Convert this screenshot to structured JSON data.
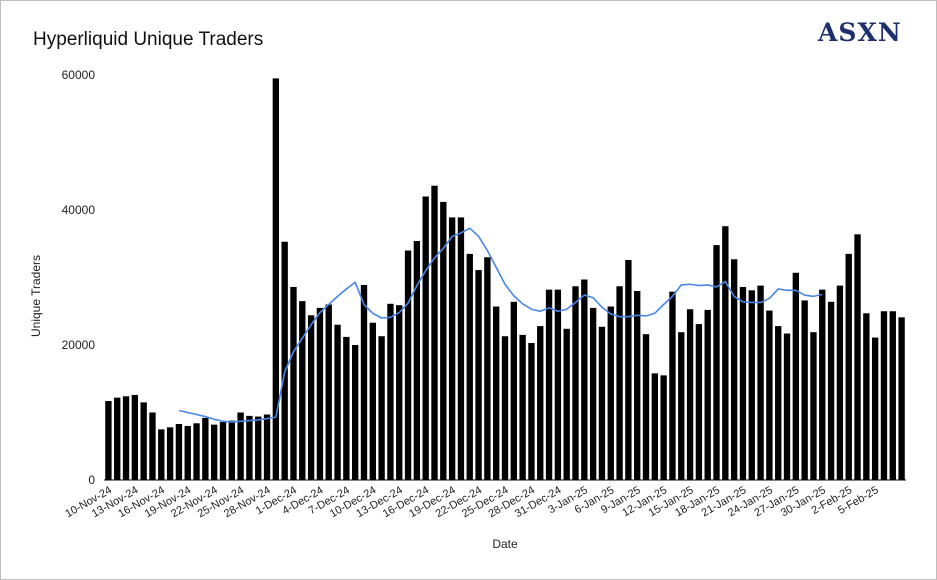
{
  "chart_data": {
    "type": "bar",
    "title": "Hyperliquid Unique Traders",
    "xlabel": "Date",
    "ylabel": "Unique Traders",
    "ylim": [
      0,
      60000
    ],
    "yticks": [
      0,
      20000,
      40000,
      60000
    ],
    "x_tick_labels": [
      "10-Nov-24",
      "13-Nov-24",
      "16-Nov-24",
      "19-Nov-24",
      "22-Nov-24",
      "25-Nov-24",
      "28-Nov-24",
      "1-Dec-24",
      "4-Dec-24",
      "7-Dec-24",
      "10-Dec-24",
      "13-Dec-24",
      "16-Dec-24",
      "19-Dec-24",
      "22-Dec-24",
      "25-Dec-24",
      "28-Dec-24",
      "31-Dec-24",
      "3-Jan-25",
      "6-Jan-25",
      "9-Jan-25",
      "12-Jan-25",
      "15-Jan-25",
      "18-Jan-25",
      "21-Jan-25",
      "24-Jan-25",
      "27-Jan-25",
      "30-Jan-25",
      "2-Feb-25",
      "5-Feb-25"
    ],
    "series": [
      {
        "type": "bar",
        "color": "#000000",
        "values": [
          11700,
          12200,
          12400,
          12600,
          11500,
          10000,
          7500,
          7800,
          8300,
          8000,
          8400,
          9200,
          8200,
          8600,
          8800,
          10000,
          9500,
          9400,
          9700,
          59500,
          35300,
          28600,
          26500,
          24400,
          25500,
          26000,
          23000,
          21200,
          20000,
          28900,
          23300,
          21300,
          26100,
          25900,
          34000,
          35400,
          42000,
          43600,
          41200,
          38900,
          38900,
          33500,
          31100,
          33000,
          25700,
          21300,
          26400,
          21500,
          20300,
          22800,
          28200,
          28200,
          22400,
          28700,
          29700,
          25500,
          22700,
          25700,
          28700,
          32600,
          28000,
          21600,
          15800,
          15500,
          27900,
          21900,
          25300,
          23100,
          25200,
          34800,
          37600,
          32700,
          28600,
          28100,
          28800,
          25100,
          22800,
          21700,
          30700,
          26600,
          21900,
          28200,
          26400,
          28800,
          33500,
          36400,
          24700,
          21100,
          25000,
          25000,
          24100
        ]
      },
      {
        "type": "line",
        "color": "#4a86e8",
        "start_index": 8,
        "values": [
          10300,
          10000,
          9700,
          9400,
          9000,
          8700,
          8600,
          8700,
          8800,
          8900,
          9100,
          9300,
          16000,
          19000,
          21000,
          23000,
          24800,
          26000,
          27200,
          28300,
          29300,
          26000,
          24700,
          24000,
          24100,
          24800,
          26200,
          28800,
          31000,
          32900,
          34300,
          36100,
          36600,
          37300,
          36100,
          34000,
          31500,
          29000,
          27300,
          26100,
          25300,
          25000,
          25500,
          25000,
          25300,
          26300,
          27400,
          27000,
          25600,
          24600,
          24200,
          24200,
          24400,
          24300,
          24700,
          26000,
          27200,
          28900,
          29000,
          28800,
          28900,
          28600,
          29400,
          27200,
          26400,
          26300,
          26300,
          26900,
          28300,
          28100,
          28100,
          27400,
          27200,
          27500
        ]
      }
    ],
    "legend": "none",
    "grid": false
  },
  "brand": {
    "logo_text": "ASXN",
    "logo_color": "#1d2f6f"
  }
}
